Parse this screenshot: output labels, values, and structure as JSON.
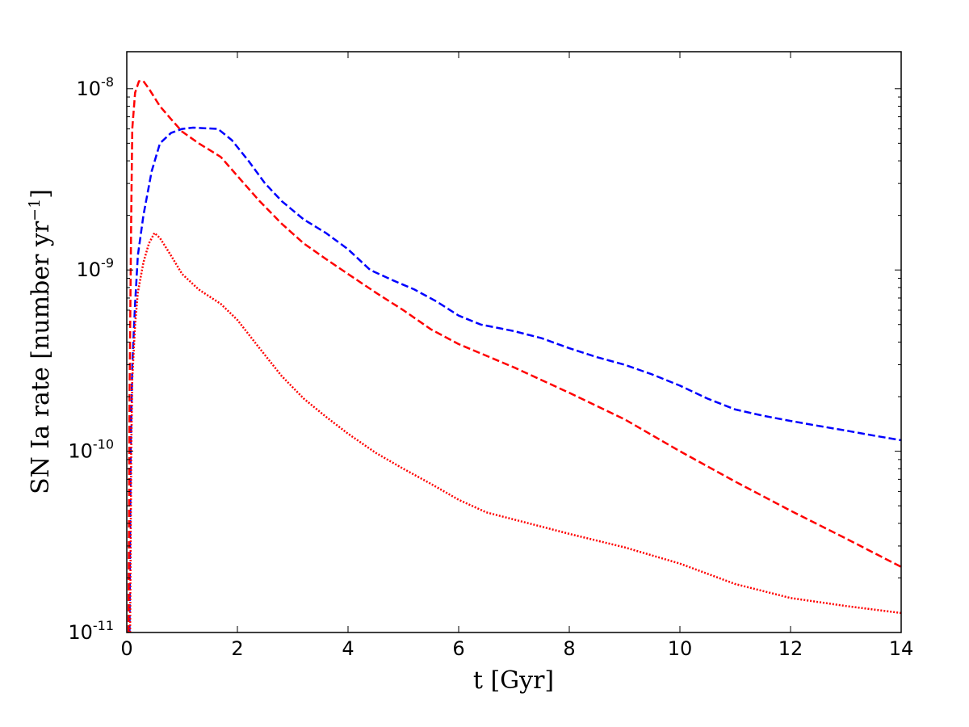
{
  "chart_data": {
    "type": "line",
    "title": "",
    "xlabel": "t [Gyr]",
    "ylabel": {
      "main": "SN Ia rate [number yr",
      "superscript": "−1",
      "close": "]"
    },
    "xscale": "linear",
    "yscale": "log",
    "xlim": [
      0,
      14
    ],
    "ylim": [
      1e-11,
      1.6e-08
    ],
    "grid": false,
    "legend": "none",
    "x_ticks": [
      {
        "value": 0,
        "label": "0"
      },
      {
        "value": 2,
        "label": "2"
      },
      {
        "value": 4,
        "label": "4"
      },
      {
        "value": 6,
        "label": "6"
      },
      {
        "value": 8,
        "label": "8"
      },
      {
        "value": 10,
        "label": "10"
      },
      {
        "value": 12,
        "label": "12"
      },
      {
        "value": 14,
        "label": "14"
      }
    ],
    "y_ticks": [
      {
        "value": 1e-08,
        "base": "10",
        "exp": "-8"
      },
      {
        "value": 1e-09,
        "base": "10",
        "exp": "-9"
      },
      {
        "value": 1e-10,
        "base": "10",
        "exp": "-10"
      },
      {
        "value": 1e-11,
        "base": "10",
        "exp": "-11"
      }
    ],
    "series": [
      {
        "color": "#0000ff",
        "dash": "dashed",
        "points": [
          [
            0.05,
            1e-11
          ],
          [
            0.07,
            1e-10
          ],
          [
            0.1,
            3e-10
          ],
          [
            0.15,
            6.5e-10
          ],
          [
            0.2,
            1.2e-09
          ],
          [
            0.3,
            2e-09
          ],
          [
            0.45,
            3.5e-09
          ],
          [
            0.6,
            5e-09
          ],
          [
            0.8,
            5.7e-09
          ],
          [
            1.0,
            6e-09
          ],
          [
            1.2,
            6.1e-09
          ],
          [
            1.65,
            6e-09
          ],
          [
            1.9,
            5.2e-09
          ],
          [
            2.2,
            4e-09
          ],
          [
            2.5,
            3e-09
          ],
          [
            2.8,
            2.4e-09
          ],
          [
            3.2,
            1.9e-09
          ],
          [
            3.6,
            1.6e-09
          ],
          [
            4.0,
            1.3e-09
          ],
          [
            4.4,
            1e-09
          ],
          [
            4.8,
            8.8e-10
          ],
          [
            5.2,
            7.8e-10
          ],
          [
            5.6,
            6.7e-10
          ],
          [
            6.0,
            5.6e-10
          ],
          [
            6.4,
            5e-10
          ],
          [
            7.0,
            4.6e-10
          ],
          [
            7.5,
            4.2e-10
          ],
          [
            8.0,
            3.7e-10
          ],
          [
            8.5,
            3.3e-10
          ],
          [
            9.0,
            3e-10
          ],
          [
            9.5,
            2.65e-10
          ],
          [
            10.0,
            2.3e-10
          ],
          [
            10.5,
            1.95e-10
          ],
          [
            11.0,
            1.7e-10
          ],
          [
            11.5,
            1.57e-10
          ],
          [
            12.0,
            1.47e-10
          ],
          [
            12.5,
            1.38e-10
          ],
          [
            13.0,
            1.3e-10
          ],
          [
            13.5,
            1.22e-10
          ],
          [
            14.0,
            1.15e-10
          ]
        ]
      },
      {
        "color": "#ff0000",
        "dash": "dashed",
        "points": [
          [
            0.03,
            1e-11
          ],
          [
            0.05,
            2e-10
          ],
          [
            0.08,
            2e-09
          ],
          [
            0.1,
            6e-09
          ],
          [
            0.15,
            9.5e-09
          ],
          [
            0.22,
            1.1e-08
          ],
          [
            0.3,
            1.1e-08
          ],
          [
            0.4,
            1e-08
          ],
          [
            0.6,
            8e-09
          ],
          [
            0.8,
            6.8e-09
          ],
          [
            1.0,
            5.8e-09
          ],
          [
            1.3,
            5e-09
          ],
          [
            1.7,
            4.2e-09
          ],
          [
            2.0,
            3.3e-09
          ],
          [
            2.4,
            2.4e-09
          ],
          [
            2.8,
            1.8e-09
          ],
          [
            3.2,
            1.4e-09
          ],
          [
            3.6,
            1.15e-09
          ],
          [
            4.0,
            9.5e-10
          ],
          [
            4.5,
            7.5e-10
          ],
          [
            5.0,
            6e-10
          ],
          [
            5.5,
            4.7e-10
          ],
          [
            6.0,
            3.9e-10
          ],
          [
            7.0,
            2.9e-10
          ],
          [
            8.0,
            2.1e-10
          ],
          [
            9.0,
            1.5e-10
          ],
          [
            10.0,
            1e-10
          ],
          [
            11.0,
            6.8e-11
          ],
          [
            12.0,
            4.7e-11
          ],
          [
            13.0,
            3.3e-11
          ],
          [
            14.0,
            2.3e-11
          ]
        ]
      },
      {
        "color": "#ff0000",
        "dash": "dotted",
        "points": [
          [
            0.06,
            1e-11
          ],
          [
            0.08,
            1e-10
          ],
          [
            0.1,
            2.5e-10
          ],
          [
            0.15,
            5e-10
          ],
          [
            0.2,
            7.5e-10
          ],
          [
            0.3,
            1.1e-09
          ],
          [
            0.4,
            1.4e-09
          ],
          [
            0.5,
            1.6e-09
          ],
          [
            0.6,
            1.5e-09
          ],
          [
            0.8,
            1.2e-09
          ],
          [
            1.0,
            9.5e-10
          ],
          [
            1.3,
            7.8e-10
          ],
          [
            1.7,
            6.5e-10
          ],
          [
            2.0,
            5.3e-10
          ],
          [
            2.4,
            3.7e-10
          ],
          [
            2.8,
            2.6e-10
          ],
          [
            3.2,
            1.95e-10
          ],
          [
            3.6,
            1.55e-10
          ],
          [
            4.0,
            1.25e-10
          ],
          [
            4.5,
            9.8e-11
          ],
          [
            5.0,
            8e-11
          ],
          [
            5.5,
            6.6e-11
          ],
          [
            6.0,
            5.4e-11
          ],
          [
            6.5,
            4.6e-11
          ],
          [
            7.0,
            4.2e-11
          ],
          [
            8.0,
            3.5e-11
          ],
          [
            9.0,
            2.95e-11
          ],
          [
            10.0,
            2.4e-11
          ],
          [
            11.0,
            1.85e-11
          ],
          [
            12.0,
            1.55e-11
          ],
          [
            13.0,
            1.4e-11
          ],
          [
            14.0,
            1.28e-11
          ]
        ]
      }
    ]
  }
}
